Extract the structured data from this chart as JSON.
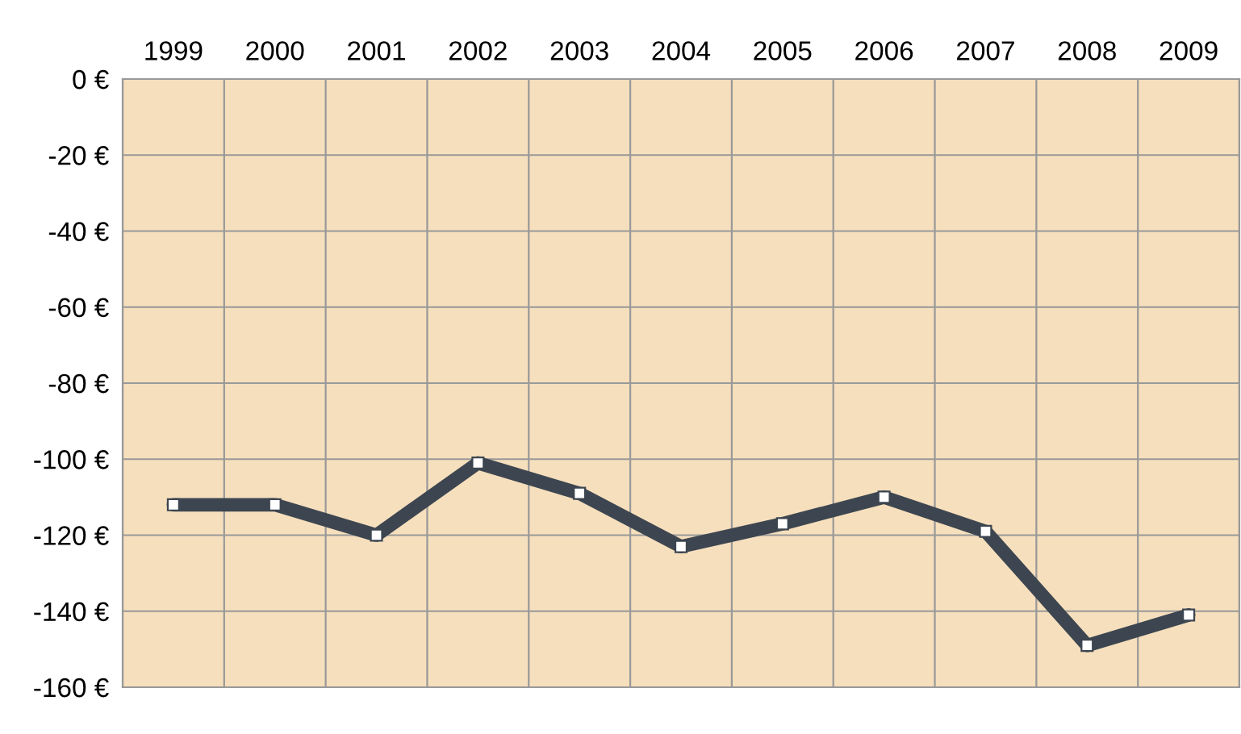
{
  "chart_data": {
    "type": "line",
    "categories": [
      "1999",
      "2000",
      "2001",
      "2002",
      "2003",
      "2004",
      "2005",
      "2006",
      "2007",
      "2008",
      "2009"
    ],
    "series": [
      {
        "color": "#3d4650",
        "values": [
          -112,
          -112,
          -120,
          -101,
          -109,
          -123,
          -117,
          -110,
          -119,
          -149,
          -141
        ]
      }
    ],
    "ylim": [
      -160,
      0
    ],
    "yticks": [
      {
        "value": 0,
        "label": "0 €"
      },
      {
        "value": -20,
        "label": "-20 €"
      },
      {
        "value": -40,
        "label": "-40 €"
      },
      {
        "value": -60,
        "label": "-60 €"
      },
      {
        "value": -80,
        "label": "-80 €"
      },
      {
        "value": -100,
        "label": "-100 €"
      },
      {
        "value": -120,
        "label": "-120 €"
      },
      {
        "value": -140,
        "label": "-140 €"
      },
      {
        "value": -160,
        "label": "-160 €"
      }
    ],
    "grid": true,
    "marker": "square",
    "line_style": "solid",
    "legend": false
  }
}
